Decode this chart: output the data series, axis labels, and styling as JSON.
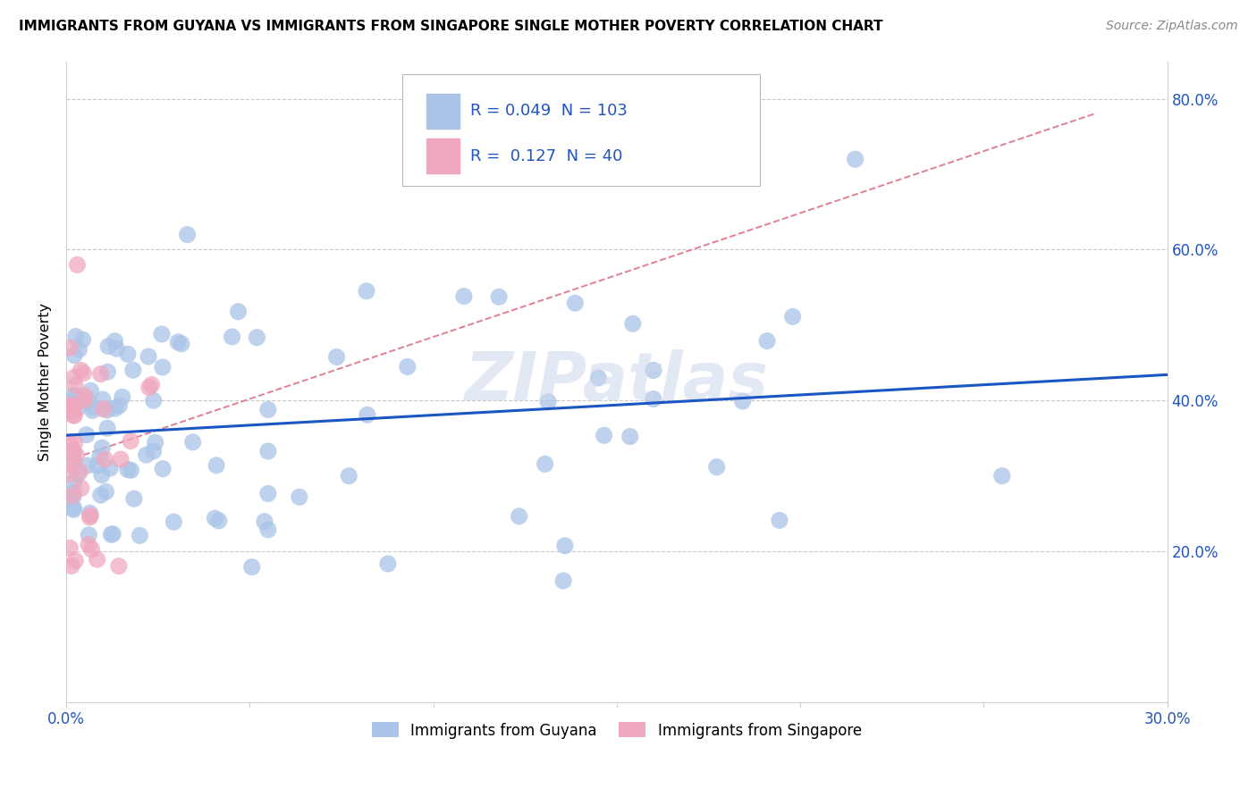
{
  "title": "IMMIGRANTS FROM GUYANA VS IMMIGRANTS FROM SINGAPORE SINGLE MOTHER POVERTY CORRELATION CHART",
  "source": "Source: ZipAtlas.com",
  "ylabel_label": "Single Mother Poverty",
  "legend_label1": "Immigrants from Guyana",
  "legend_label2": "Immigrants from Singapore",
  "R1": 0.049,
  "N1": 103,
  "R2": 0.127,
  "N2": 40,
  "color_blue": "#aac4e8",
  "color_pink": "#f0a8be",
  "color_blue_line": "#1a56c4",
  "color_pink_dashed": "#e08090",
  "xlim": [
    0.0,
    0.3
  ],
  "ylim": [
    0.0,
    0.85
  ],
  "watermark": "ZIPatlas"
}
